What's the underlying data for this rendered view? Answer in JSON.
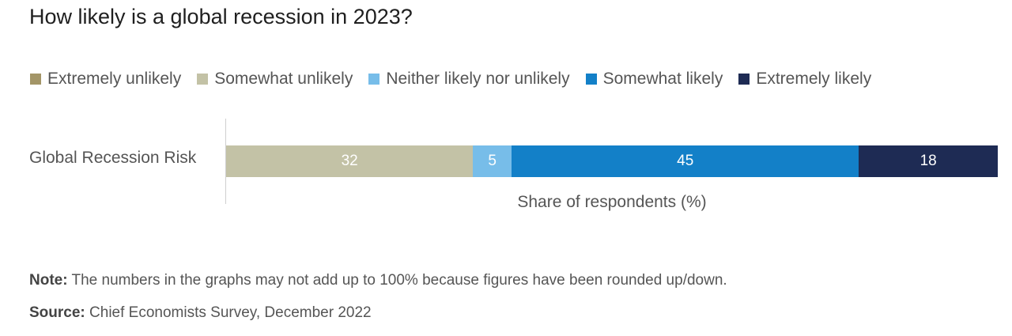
{
  "chart_data": {
    "type": "bar",
    "orientation": "horizontal-stacked",
    "title": "How likely is a global recession in 2023?",
    "categories": [
      "Global Recession Risk"
    ],
    "series": [
      {
        "name": "Extremely unlikely",
        "values": [
          0
        ],
        "color": "#a39567"
      },
      {
        "name": "Somewhat unlikely",
        "values": [
          32
        ],
        "color": "#c3c2a6"
      },
      {
        "name": "Neither likely nor unlikely",
        "values": [
          5
        ],
        "color": "#77bde9"
      },
      {
        "name": "Somewhat likely",
        "values": [
          45
        ],
        "color": "#1380c8"
      },
      {
        "name": "Extremely likely",
        "values": [
          18
        ],
        "color": "#1e2b54"
      }
    ],
    "xlabel": "Share of respondents (%)",
    "ylabel": "",
    "xlim": [
      0,
      100
    ],
    "legend_position": "top",
    "grid": false
  },
  "footer": {
    "note_label": "Note:",
    "note_text": " The numbers in the graphs may not add up to 100% because figures have been rounded up/down.",
    "source_label": "Source:",
    "source_text": " Chief Economists Survey, December 2022"
  }
}
